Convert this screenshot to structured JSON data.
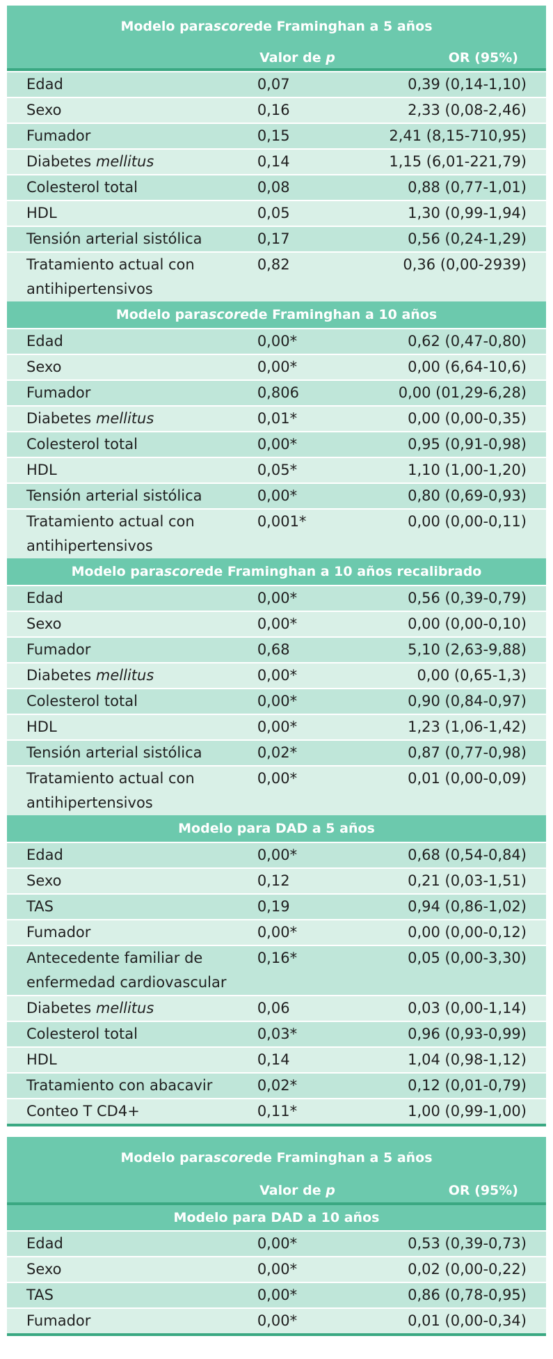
{
  "col_headers": {
    "p": "Valor de p",
    "or": "OR (95%)"
  },
  "sections": [
    {
      "title_pre": "Modelo para ",
      "title_it": "score",
      "title_post": " de Framinghan a 5 años",
      "rows": [
        {
          "label": "Edad",
          "p": "0,07",
          "or": "0,39 (0,14-1,10)"
        },
        {
          "label": "Sexo",
          "p": "0,16",
          "or": "2,33 (0,08-2,46)"
        },
        {
          "label": "Fumador",
          "p": "0,15",
          "or": "2,41 (8,15-710,95)"
        },
        {
          "label_pre": "Diabetes ",
          "label_it": "mellitus",
          "p": "0,14",
          "or": "1,15 (6,01-221,79)"
        },
        {
          "label": "Colesterol total",
          "p": "0,08",
          "or": "0,88 (0,77-1,01)"
        },
        {
          "label": "HDL",
          "p": "0,05",
          "or": "1,30 (0,99-1,94)"
        },
        {
          "label": "Tensión arterial sistólica",
          "p": "0,17",
          "or": "0,56 (0,24-1,29)"
        },
        {
          "label": "Tratamiento actual con",
          "label2": "antihipertensivos",
          "p": "0,82",
          "or": "0,36 (0,00-2939)"
        }
      ]
    },
    {
      "title_pre": "Modelo para ",
      "title_it": "score",
      "title_post": " de Framinghan a 10 años",
      "rows": [
        {
          "label": "Edad",
          "p": "0,00*",
          "or": "0,62 (0,47-0,80)"
        },
        {
          "label": "Sexo",
          "p": "0,00*",
          "or": "0,00 (6,64-10,6)"
        },
        {
          "label": "Fumador",
          "p": "0,806",
          "or": "0,00 (01,29-6,28)"
        },
        {
          "label_pre": "Diabetes ",
          "label_it": "mellitus",
          "p": "0,01*",
          "or": "0,00 (0,00-0,35)"
        },
        {
          "label": "Colesterol total",
          "p": "0,00*",
          "or": "0,95 (0,91-0,98)"
        },
        {
          "label": "HDL",
          "p": "0,05*",
          "or": "1,10 (1,00-1,20)"
        },
        {
          "label": "Tensión arterial sistólica",
          "p": "0,00*",
          "or": "0,80 (0,69-0,93)"
        },
        {
          "label": "Tratamiento actual con",
          "label2": "antihipertensivos",
          "p": "0,001*",
          "or": "0,00 (0,00-0,11)"
        }
      ]
    },
    {
      "title_pre": "Modelo para ",
      "title_it": "score",
      "title_post": " de Framinghan a 10 años recalibrado",
      "rows": [
        {
          "label": "Edad",
          "p": "0,00*",
          "or": "0,56 (0,39-0,79)"
        },
        {
          "label": "Sexo",
          "p": "0,00*",
          "or": "0,00 (0,00-0,10)"
        },
        {
          "label": "Fumador",
          "p": "0,68",
          "or": "5,10 (2,63-9,88)"
        },
        {
          "label_pre": "Diabetes ",
          "label_it": "mellitus",
          "p": "0,00*",
          "or": "0,00 (0,65-1,3)"
        },
        {
          "label": "Colesterol total",
          "p": "0,00*",
          "or": "0,90 (0,84-0,97)"
        },
        {
          "label": "HDL",
          "p": "0,00*",
          "or": "1,23 (1,06-1,42)"
        },
        {
          "label": "Tensión arterial sistólica",
          "p": "0,02*",
          "or": "0,87 (0,77-0,98)"
        },
        {
          "label": "Tratamiento actual con",
          "label2": "antihipertensivos",
          "p": "0,00*",
          "or": "0,01 (0,00-0,09)"
        }
      ]
    },
    {
      "title_pre": "Modelo para DAD a 5 años",
      "title_it": "",
      "title_post": "",
      "rows": [
        {
          "label": "Edad",
          "p": "0,00*",
          "or": "0,68 (0,54-0,84)"
        },
        {
          "label": "Sexo",
          "p": "0,12",
          "or": "0,21 (0,03-1,51)"
        },
        {
          "label": "TAS",
          "p": "0,19",
          "or": "0,94 (0,86-1,02)"
        },
        {
          "label": "Fumador",
          "p": "0,00*",
          "or": "0,00 (0,00-0,12)"
        },
        {
          "label": "Antecedente familiar de",
          "label2": "enfermedad cardiovascular",
          "p": "0,16*",
          "or": "0,05 (0,00-3,30)"
        },
        {
          "label_pre": "Diabetes ",
          "label_it": "mellitus",
          "p": "0,06",
          "or": "0,03 (0,00-1,14)"
        },
        {
          "label": "Colesterol total",
          "p": "0,03*",
          "or": "0,96 (0,93-0,99)"
        },
        {
          "label": "HDL",
          "p": "0,14",
          "or": "1,04 (0,98-1,12)"
        },
        {
          "label": "Tratamiento con abacavir",
          "p": "0,02*",
          "or": "0,12 (0,01-0,79)"
        },
        {
          "label": "Conteo T CD4+",
          "p": "0,11*",
          "or": "1,00 (0,99-1,00)"
        }
      ]
    }
  ],
  "table2": {
    "title_pre": "Modelo para ",
    "title_it": "score",
    "title_post": " de Framinghan a 5 años",
    "col_p": "Valor de p",
    "col_or": "OR (95%)",
    "sub_title": "Modelo para DAD a 10 años",
    "rows": [
      {
        "label": "Edad",
        "p": "0,00*",
        "or": "0,53 (0,39-0,73)"
      },
      {
        "label": "Sexo",
        "p": "0,00*",
        "or": "0,02 (0,00-0,22)"
      },
      {
        "label": "TAS",
        "p": "0,00*",
        "or": "0,86 (0,78-0,95)"
      },
      {
        "label": "Fumador",
        "p": "0,00*",
        "or": "0,01 (0,00-0,34)"
      }
    ]
  }
}
